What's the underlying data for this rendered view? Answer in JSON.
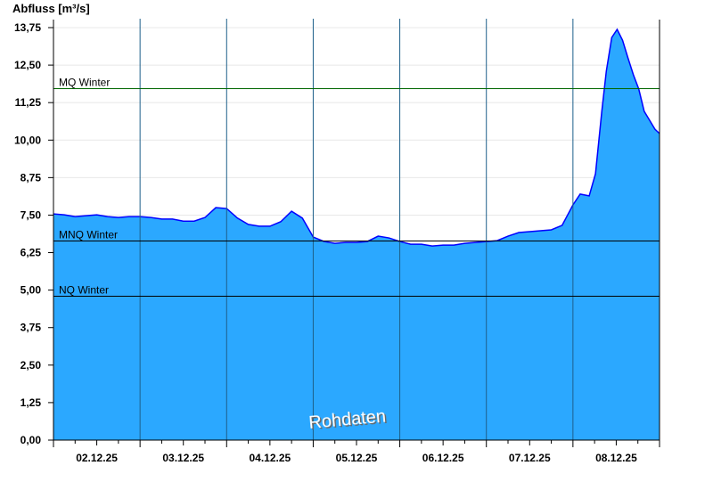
{
  "chart_data": {
    "type": "area",
    "ylabel": "Abfluss [m³/s]",
    "ylim": [
      0,
      13.75
    ],
    "yticks": [
      "0,00",
      "1,25",
      "2,50",
      "3,75",
      "5,00",
      "6,25",
      "7,50",
      "8,75",
      "10,00",
      "11,25",
      "12,50",
      "13,75"
    ],
    "xlim": [
      "02.12.25 00:00",
      "09.12.25 00:00"
    ],
    "xtick_labels": [
      "02.12.25",
      "03.12.25",
      "04.12.25",
      "05.12.25",
      "06.12.25",
      "07.12.25",
      "08.12.25"
    ],
    "grid": true,
    "watermark": "Rohdaten",
    "colors": {
      "fill": "#2ba8ff",
      "line": "#0000ff",
      "mq": "#006600",
      "ref": "#000000"
    },
    "reference_lines": [
      {
        "name": "MQ Winter",
        "value": 11.73
      },
      {
        "name": "MNQ Winter",
        "value": 6.65
      },
      {
        "name": "NQ Winter",
        "value": 4.81
      }
    ],
    "series": [
      {
        "x": [
          "02.12.25 00:00",
          "02.12.25 03:00",
          "02.12.25 06:00",
          "02.12.25 09:00",
          "02.12.25 12:00",
          "02.12.25 15:00",
          "02.12.25 18:00",
          "02.12.25 21:00",
          "03.12.25 00:00",
          "03.12.25 03:00",
          "03.12.25 06:00",
          "03.12.25 09:00",
          "03.12.25 12:00",
          "03.12.25 15:00",
          "03.12.25 18:00",
          "03.12.25 21:00",
          "04.12.25 00:00",
          "04.12.25 03:00",
          "04.12.25 06:00",
          "04.12.25 09:00",
          "04.12.25 12:00",
          "04.12.25 15:00",
          "04.12.25 18:00",
          "04.12.25 21:00",
          "05.12.25 00:00",
          "05.12.25 03:00",
          "05.12.25 06:00",
          "05.12.25 09:00",
          "05.12.25 12:00",
          "05.12.25 15:00",
          "05.12.25 18:00",
          "05.12.25 21:00",
          "06.12.25 00:00",
          "06.12.25 03:00",
          "06.12.25 06:00",
          "06.12.25 09:00",
          "06.12.25 12:00",
          "06.12.25 15:00",
          "06.12.25 18:00",
          "06.12.25 21:00",
          "07.12.25 00:00",
          "07.12.25 03:00",
          "07.12.25 06:00",
          "07.12.25 09:00",
          "07.12.25 12:00",
          "07.12.25 15:00",
          "07.12.25 18:00",
          "07.12.25 21:00",
          "08.12.25 00:00",
          "08.12.25 02:00",
          "08.12.25 04:30",
          "08.12.25 06:15",
          "08.12.25 08:00",
          "08.12.25 09:15",
          "08.12.25 10:45",
          "08.12.25 12:15",
          "08.12.25 13:45",
          "08.12.25 15:15",
          "08.12.25 16:45",
          "08.12.25 18:15",
          "08.12.25 19:45",
          "08.12.25 21:15",
          "08.12.25 22:45",
          "09.12.25 00:00"
        ],
        "y": [
          7.54,
          7.51,
          7.45,
          7.48,
          7.51,
          7.45,
          7.42,
          7.45,
          7.45,
          7.42,
          7.37,
          7.37,
          7.3,
          7.3,
          7.42,
          7.75,
          7.72,
          7.4,
          7.19,
          7.13,
          7.13,
          7.28,
          7.63,
          7.4,
          6.77,
          6.62,
          6.56,
          6.59,
          6.59,
          6.62,
          6.8,
          6.74,
          6.62,
          6.53,
          6.53,
          6.47,
          6.5,
          6.5,
          6.56,
          6.59,
          6.62,
          6.65,
          6.8,
          6.92,
          6.95,
          6.98,
          7.01,
          7.16,
          7.84,
          8.2,
          8.14,
          8.88,
          10.96,
          12.3,
          13.42,
          13.69,
          13.33,
          12.74,
          12.18,
          11.7,
          10.96,
          10.66,
          10.36,
          10.22
        ]
      }
    ]
  }
}
